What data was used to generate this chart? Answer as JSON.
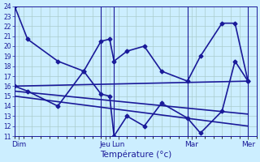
{
  "xlabel": "Température (°c)",
  "background_color": "#cceeff",
  "grid_color": "#aacccc",
  "line_color": "#1a1a99",
  "ylim": [
    11,
    24
  ],
  "yticks": [
    11,
    12,
    13,
    14,
    15,
    16,
    17,
    18,
    19,
    20,
    21,
    22,
    23,
    24
  ],
  "xlim": [
    0,
    28
  ],
  "day_labels": [
    "Dim",
    "Jeu",
    "Lun",
    "Mar",
    "Mer"
  ],
  "day_positions": [
    0.5,
    10.5,
    12.0,
    20.5,
    27.0
  ],
  "vline_positions": [
    0,
    10,
    11.5,
    20,
    27
  ],
  "line1_x": [
    0,
    1.5,
    5,
    8,
    10,
    11,
    11.5,
    13,
    15,
    17,
    20,
    21.5,
    24,
    25.5,
    27
  ],
  "line1_y": [
    24,
    20.7,
    18.5,
    17.5,
    20.5,
    20.7,
    18.5,
    19.5,
    20.0,
    17.5,
    16.5,
    19.0,
    22.3,
    22.3,
    16.5
  ],
  "line2_x": [
    0,
    1.5,
    5,
    8,
    10,
    11,
    11.5,
    13,
    15,
    17,
    20,
    21.5,
    24,
    25.5,
    27
  ],
  "line2_y": [
    16.0,
    15.5,
    14.0,
    17.5,
    15.2,
    15.0,
    11.0,
    13.0,
    12.0,
    14.3,
    12.8,
    11.3,
    13.5,
    18.5,
    16.5
  ],
  "trend1_x": [
    0,
    27
  ],
  "trend1_y": [
    16.0,
    16.5
  ],
  "trend2_x": [
    0,
    27
  ],
  "trend2_y": [
    15.5,
    13.2
  ],
  "trend3_x": [
    0,
    27
  ],
  "trend3_y": [
    15.0,
    12.0
  ],
  "line_width": 1.2,
  "marker_size": 2.5
}
